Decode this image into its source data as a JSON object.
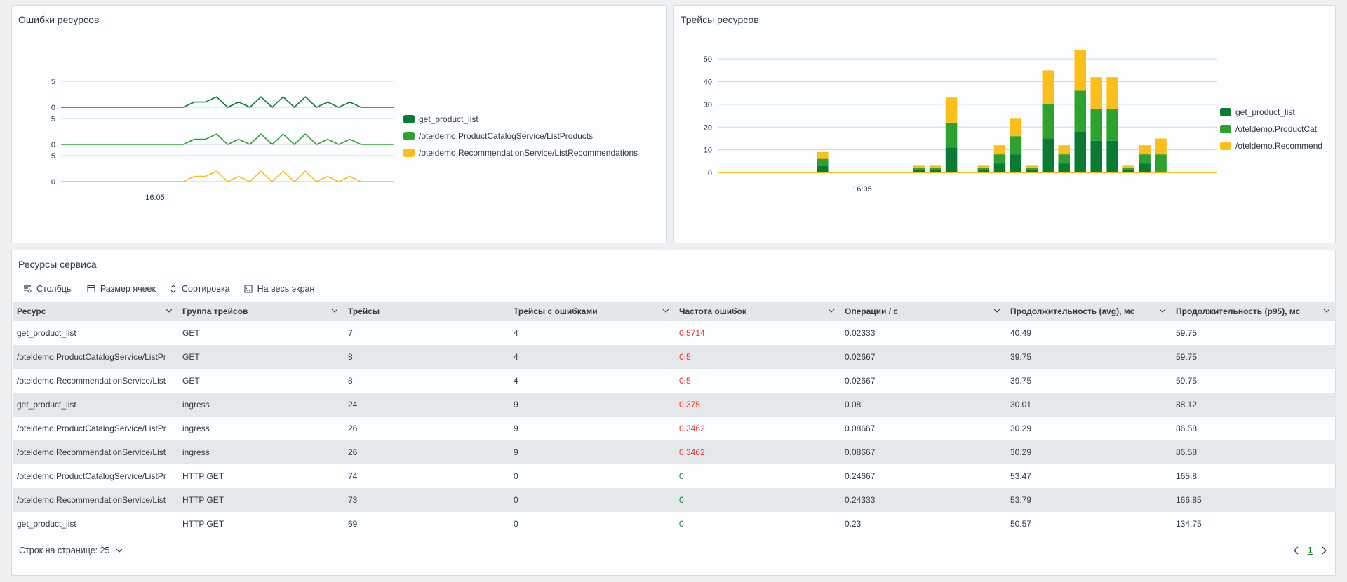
{
  "errors_panel": {
    "title": "Ошибки ресурсов",
    "time_label": "16:05",
    "rows": [
      {
        "top_tick": "5",
        "bottom_tick": "0",
        "color": "#0a7a35"
      },
      {
        "top_tick": "5",
        "bottom_tick": "0",
        "color": "#2ea12e"
      },
      {
        "top_tick": "5",
        "bottom_tick": "0",
        "color": "#fbbf1c"
      }
    ],
    "legend": [
      {
        "label": "get_product_list",
        "color": "#0a7a35"
      },
      {
        "label": "/oteldemo.ProductCatalogService/ListProducts",
        "color": "#2ea12e"
      },
      {
        "label": "/oteldemo.RecommendationService/ListRecommendations",
        "color": "#fbbf1c"
      }
    ]
  },
  "traces_panel": {
    "title": "Трейсы ресурсов",
    "legend": [
      {
        "label": "get_product_list",
        "color": "#0a7a35"
      },
      {
        "label": "/oteldemo.ProductCat",
        "color": "#2ea12e"
      },
      {
        "label": "/oteldemo.Recommend",
        "color": "#fbbf1c"
      }
    ]
  },
  "chart_data": [
    {
      "type": "line",
      "title": "Ошибки ресурсов",
      "x_tick_labels": [
        "16:05"
      ],
      "ylim": [
        0,
        5
      ],
      "yticks": [
        "0",
        "5"
      ],
      "series": [
        {
          "name": "get_product_list",
          "values": [
            0,
            0,
            0,
            0,
            0,
            0,
            0,
            0,
            0,
            0,
            0,
            0,
            1,
            1,
            2,
            0,
            1,
            0,
            2,
            0,
            2,
            0,
            2,
            0,
            1,
            0,
            1,
            0,
            0,
            0,
            0
          ]
        },
        {
          "name": "/oteldemo.ProductCatalogService/ListProducts",
          "values": [
            0,
            0,
            0,
            0,
            0,
            0,
            0,
            0,
            0,
            0,
            0,
            0,
            1,
            1,
            2,
            0,
            1,
            0,
            2,
            0,
            2,
            0,
            2,
            0,
            1,
            0,
            1,
            0,
            0,
            0,
            0
          ]
        },
        {
          "name": "/oteldemo.RecommendationService/ListRecommendations",
          "values": [
            0,
            0,
            0,
            0,
            0,
            0,
            0,
            0,
            0,
            0,
            0,
            0,
            1,
            1,
            2,
            0,
            1,
            0,
            2,
            0,
            2,
            0,
            2,
            0,
            1,
            0,
            1,
            0,
            0,
            0,
            0
          ]
        }
      ]
    },
    {
      "type": "bar",
      "stacked": true,
      "title": "Трейсы ресурсов",
      "x_tick_labels": [
        "16:05"
      ],
      "ylim": [
        0,
        55
      ],
      "yticks": [
        "0",
        "10",
        "20",
        "30",
        "40",
        "50"
      ],
      "series": [
        {
          "name": "get_product_list",
          "values": [
            0,
            0,
            0,
            0,
            0,
            0,
            3,
            0,
            0,
            0,
            0,
            0,
            1,
            1,
            11,
            0,
            1,
            4,
            8,
            1,
            15,
            4,
            18,
            14,
            14,
            1,
            4,
            0,
            0,
            0,
            0
          ]
        },
        {
          "name": "/oteldemo.ProductCatalogService/ListProducts",
          "values": [
            0,
            0,
            0,
            0,
            0,
            0,
            3,
            0,
            0,
            0,
            0,
            0,
            1,
            1,
            11,
            0,
            1,
            4,
            8,
            1,
            15,
            4,
            18,
            14,
            14,
            1,
            4,
            8,
            0,
            0,
            0
          ]
        },
        {
          "name": "/oteldemo.RecommendationService/ListRecommendations",
          "values": [
            0,
            0,
            0,
            0,
            0,
            0,
            3,
            0,
            0,
            0,
            0,
            0,
            1,
            1,
            11,
            0,
            1,
            4,
            8,
            1,
            15,
            4,
            18,
            14,
            14,
            1,
            4,
            7,
            0,
            0,
            0
          ]
        }
      ]
    }
  ],
  "table_panel": {
    "title": "Ресурсы сервиса",
    "toolbar": {
      "columns": "Столбцы",
      "cell_size": "Размер ячеек",
      "sort": "Сортировка",
      "fullscreen": "На весь экран"
    },
    "columns": [
      "Ресурс",
      "Группа трейсов",
      "Трейсы",
      "Трейсы с ошибками",
      "Частота ошибок",
      "Операции / с",
      "Продолжительность (avg), мс",
      "Продолжительность (p95), мс"
    ],
    "rows": [
      [
        "get_product_list",
        "GET",
        "7",
        "4",
        "0.5714",
        "0.02333",
        "40.49",
        "59.75"
      ],
      [
        "/oteldemo.ProductCatalogService/ListPr",
        "GET",
        "8",
        "4",
        "0.5",
        "0.02667",
        "39.75",
        "59.75"
      ],
      [
        "/oteldemo.RecommendationService/List",
        "GET",
        "8",
        "4",
        "0.5",
        "0.02667",
        "39.75",
        "59.75"
      ],
      [
        "get_product_list",
        "ingress",
        "24",
        "9",
        "0.375",
        "0.08",
        "30.01",
        "88.12"
      ],
      [
        "/oteldemo.ProductCatalogService/ListPr",
        "ingress",
        "26",
        "9",
        "0.3462",
        "0.08667",
        "30.29",
        "86.58"
      ],
      [
        "/oteldemo.RecommendationService/List",
        "ingress",
        "26",
        "9",
        "0.3462",
        "0.08667",
        "30.29",
        "86.58"
      ],
      [
        "/oteldemo.ProductCatalogService/ListPr",
        "HTTP GET",
        "74",
        "0",
        "0",
        "0.24667",
        "53.47",
        "165.8"
      ],
      [
        "/oteldemo.RecommendationService/List",
        "HTTP GET",
        "73",
        "0",
        "0",
        "0.24333",
        "53.79",
        "166.85"
      ],
      [
        "get_product_list",
        "HTTP GET",
        "69",
        "0",
        "0",
        "0.23",
        "50.57",
        "134.75"
      ]
    ],
    "rows_per_page_label": "Строк на странице: 25",
    "current_page": "1"
  }
}
